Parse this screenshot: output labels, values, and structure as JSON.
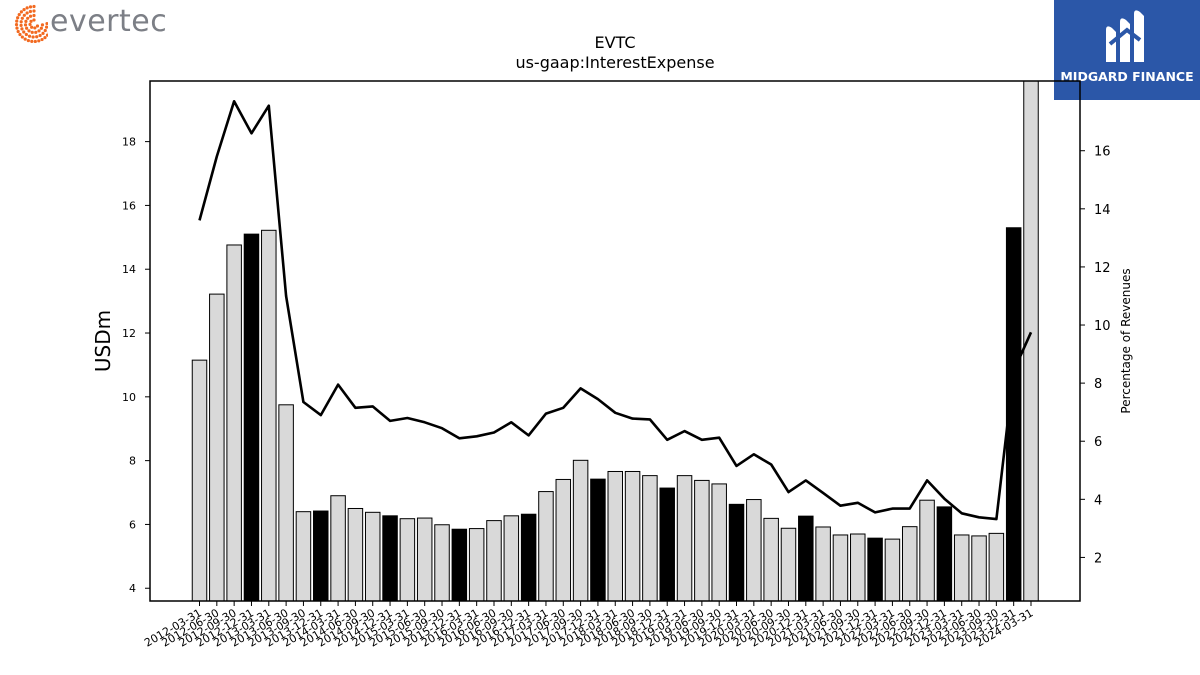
{
  "brand": {
    "left_logo_text": "evertec",
    "right_logo_text": "MIDGARD FINANCE",
    "left_logo_icon": "dot-burst-icon",
    "right_logo_icon": "m-monogram-icon"
  },
  "colors": {
    "bar_highlight": "#000000",
    "bar_default": "#d9d9d9",
    "line": "#000000",
    "evertec_orange": "#f26a21",
    "midgard_blue": "#2b57a8"
  },
  "chart_data": {
    "type": "bar",
    "title": "EVTC",
    "subtitle": "us-gaap:InterestExpense",
    "ylabel": "USDm",
    "y2label": "Percentage of Revenues",
    "ylim": [
      3.6,
      19.9
    ],
    "y2lim": [
      0.5,
      18.4
    ],
    "yticks": [
      4,
      6,
      8,
      10,
      12,
      14,
      16,
      18
    ],
    "y2ticks": [
      2,
      4,
      6,
      8,
      10,
      12,
      14,
      16
    ],
    "categories": [
      "2012-03-31",
      "2012-06-30",
      "2012-09-30",
      "2012-12-31",
      "2013-03-31",
      "2013-06-30",
      "2013-09-30",
      "2013-12-31",
      "2014-03-31",
      "2014-06-30",
      "2014-09-30",
      "2014-12-31",
      "2015-03-31",
      "2015-06-30",
      "2015-09-30",
      "2015-12-31",
      "2016-03-31",
      "2016-06-30",
      "2016-09-30",
      "2016-12-31",
      "2017-03-31",
      "2017-06-30",
      "2017-09-30",
      "2017-12-31",
      "2018-03-31",
      "2018-06-30",
      "2018-09-30",
      "2018-12-31",
      "2019-03-31",
      "2019-06-30",
      "2019-09-30",
      "2019-12-31",
      "2020-03-31",
      "2020-06-30",
      "2020-09-30",
      "2020-12-31",
      "2021-03-31",
      "2021-06-30",
      "2021-09-30",
      "2021-12-31",
      "2022-03-31",
      "2022-06-30",
      "2022-09-30",
      "2022-12-31",
      "2023-03-31",
      "2023-06-30",
      "2023-09-30",
      "2023-12-31",
      "2024-03-31"
    ],
    "series": [
      {
        "type": "bar",
        "values": [
          11.15,
          13.22,
          14.76,
          15.1,
          15.22,
          9.75,
          6.4,
          6.42,
          6.9,
          6.5,
          6.38,
          6.27,
          6.18,
          6.2,
          5.99,
          5.85,
          5.87,
          6.12,
          6.27,
          6.32,
          7.03,
          7.41,
          8.01,
          7.42,
          7.66,
          7.66,
          7.53,
          7.14,
          7.53,
          7.38,
          7.27,
          6.63,
          6.78,
          6.19,
          5.88,
          6.26,
          5.92,
          5.67,
          5.7,
          5.57,
          5.54,
          5.93,
          6.76,
          6.55,
          5.67,
          5.64,
          5.72,
          15.3,
          19.9
        ],
        "highlight": [
          false,
          false,
          false,
          true,
          false,
          false,
          false,
          true,
          false,
          false,
          false,
          true,
          false,
          false,
          false,
          true,
          false,
          false,
          false,
          true,
          false,
          false,
          false,
          true,
          false,
          false,
          false,
          true,
          false,
          false,
          false,
          true,
          false,
          false,
          false,
          true,
          false,
          false,
          false,
          true,
          false,
          false,
          false,
          true,
          false,
          false,
          false,
          true,
          false
        ]
      },
      {
        "type": "line",
        "axis": "right",
        "values": [
          13.6,
          15.8,
          17.7,
          16.6,
          17.55,
          11.0,
          7.35,
          6.9,
          7.95,
          7.15,
          7.2,
          6.7,
          6.8,
          6.65,
          6.45,
          6.1,
          6.17,
          6.3,
          6.65,
          6.2,
          6.95,
          7.15,
          7.82,
          7.45,
          6.98,
          6.78,
          6.75,
          6.05,
          6.35,
          6.05,
          6.12,
          5.15,
          5.55,
          5.2,
          4.25,
          4.65,
          4.22,
          3.78,
          3.88,
          3.55,
          3.68,
          3.68,
          4.65,
          4.02,
          3.52,
          3.38,
          3.32,
          8.42,
          9.75
        ]
      }
    ],
    "grid": false,
    "legend": "none"
  }
}
